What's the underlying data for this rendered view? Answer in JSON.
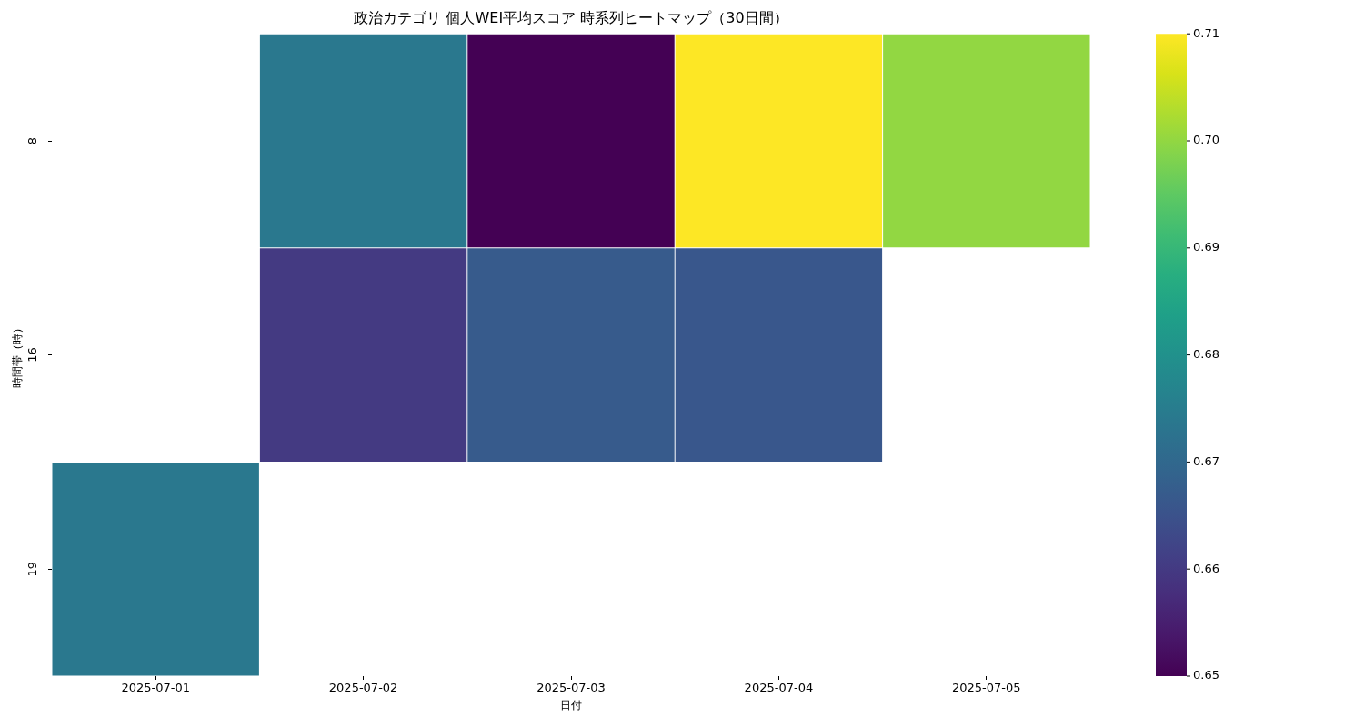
{
  "chart_data": {
    "type": "heatmap",
    "title": "政治カテゴリ 個人WEI平均スコア 時系列ヒートマップ（30日間）",
    "xlabel": "日付",
    "ylabel": "時間帯（時）",
    "categories": [
      "2025-07-01",
      "2025-07-02",
      "2025-07-03",
      "2025-07-04",
      "2025-07-05"
    ],
    "y_categories": [
      "8",
      "16",
      "19"
    ],
    "cells": [
      [
        null,
        0.674,
        0.65,
        0.71,
        0.7
      ],
      [
        null,
        0.66,
        0.667,
        0.666,
        null
      ],
      [
        0.674,
        null,
        null,
        null,
        null
      ]
    ],
    "clim": [
      0.65,
      0.71
    ],
    "cticks": [
      0.65,
      0.66,
      0.67,
      0.68,
      0.69,
      {
        "value": 0.7,
        "label": "0.70"
      },
      0.71
    ]
  }
}
